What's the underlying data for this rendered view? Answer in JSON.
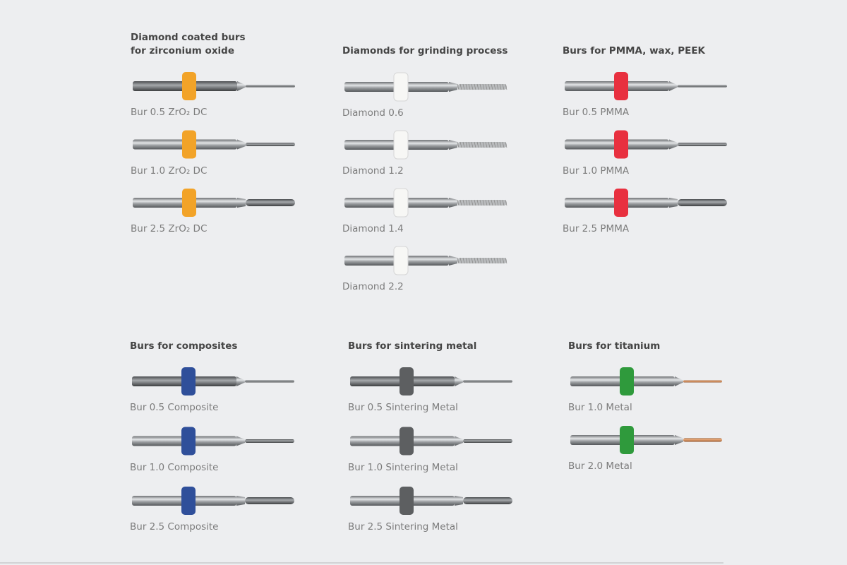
{
  "groups": [
    {
      "title": "Diamond coated burs\nfor zirconium oxide",
      "color": "#f2a328",
      "items": [
        "Bur 0.5 ZrO₂ DC",
        "Bur 1.0 ZrO₂ DC",
        "Bur 2.5 ZrO₂ DC"
      ]
    },
    {
      "title": "Diamonds for grinding process",
      "color": "#f7f7f5",
      "items": [
        "Diamond 0.6",
        "Diamond 1.2",
        "Diamond 1.4",
        "Diamond 2.2"
      ]
    },
    {
      "title": "Burs for PMMA, wax, PEEK",
      "color": "#e8303f",
      "items": [
        "Bur 0.5 PMMA",
        "Bur 1.0 PMMA",
        "Bur 2.5 PMMA"
      ]
    },
    {
      "title": "Burs for composites",
      "color": "#2f4f9a",
      "items": [
        "Bur 0.5 Composite",
        "Bur 1.0 Composite",
        "Bur 2.5 Composite"
      ]
    },
    {
      "title": "Burs for sintering metal",
      "color": "#5d5f61",
      "items": [
        "Bur 0.5 Sintering Metal",
        "Bur 1.0 Sintering Metal",
        "Bur 2.5 Sintering Metal"
      ]
    },
    {
      "title": "Burs for titanium",
      "color": "#2f9a3c",
      "items": [
        "Bur 1.0 Metal",
        "Bur 2.0 Metal"
      ]
    }
  ]
}
